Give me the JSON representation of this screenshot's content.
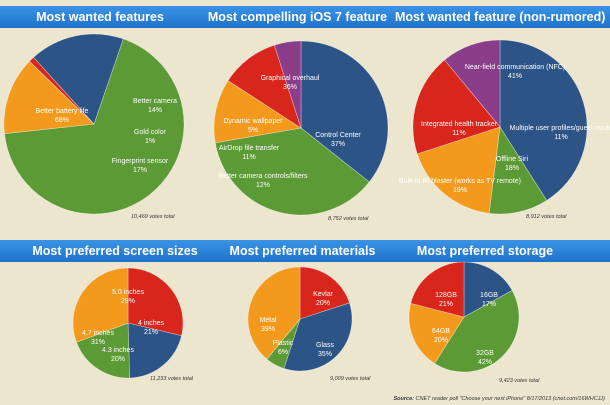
{
  "source": {
    "label": "Source:",
    "text": "CNET reader poll \"Choose your next iPhone\" 8/17/2013 (cnet.com/16WHCJJ)"
  },
  "chart_data": [
    {
      "type": "pie",
      "title": "Most wanted features",
      "votes_note": "10,469 votes total",
      "slices": [
        {
          "label": "Better battery life",
          "value": 68,
          "value_text": "68%",
          "color": "#5b9a35"
        },
        {
          "label": "Better camera",
          "value": 14,
          "value_text": "14%",
          "color": "#f39a1c"
        },
        {
          "label": "Gold color",
          "value": 1,
          "value_text": "1%",
          "color": "#d9261c"
        },
        {
          "label": "Fingerprint sensor",
          "value": 17,
          "value_text": "17%",
          "color": "#2d5486"
        }
      ]
    },
    {
      "type": "pie",
      "title": "Most compelling iOS 7 feature",
      "votes_note": "8,752 votes total",
      "slices": [
        {
          "label": "Graphical overhaul",
          "value": 36,
          "value_text": "36%",
          "color": "#2d5486"
        },
        {
          "label": "Control Center",
          "value": 37,
          "value_text": "37%",
          "color": "#5b9a35"
        },
        {
          "label": "Better camera controls/filters",
          "value": 12,
          "value_text": "12%",
          "color": "#f39a1c"
        },
        {
          "label": "AirDrop file transfer",
          "value": 11,
          "value_text": "11%",
          "color": "#d9261c"
        },
        {
          "label": "Dynamic wallpaper",
          "value": 5,
          "value_text": "5%",
          "color": "#8a3e8a"
        }
      ]
    },
    {
      "type": "pie",
      "title": "Most wanted feature (non-rumored)",
      "votes_note": "8,912 votes total",
      "slices": [
        {
          "label": "Near-field communication (NFC)",
          "value": 41,
          "value_text": "41%",
          "color": "#2d5486"
        },
        {
          "label": "Multiple user profiles/guest mode",
          "value": 11,
          "value_text": "11%",
          "color": "#5b9a35"
        },
        {
          "label": "Offline Siri",
          "value": 18,
          "value_text": "18%",
          "color": "#f39a1c"
        },
        {
          "label": "Built-in IR blaster (works as TV remote)",
          "value": 19,
          "value_text": "19%",
          "color": "#d9261c"
        },
        {
          "label": "Integrated health tracker",
          "value": 11,
          "value_text": "11%",
          "color": "#8a3e8a"
        }
      ]
    },
    {
      "type": "pie",
      "title": "Most preferred screen sizes",
      "votes_note": "11,233 votes total",
      "slices": [
        {
          "label": "5.0 inches",
          "value": 29,
          "value_text": "29%",
          "color": "#d9261c"
        },
        {
          "label": "4 inches",
          "value": 21,
          "value_text": "21%",
          "color": "#2d5486"
        },
        {
          "label": "4.3 inches",
          "value": 20,
          "value_text": "20%",
          "color": "#5b9a35"
        },
        {
          "label": "4.7 inches",
          "value": 31,
          "value_text": "31%",
          "color": "#f39a1c"
        }
      ]
    },
    {
      "type": "pie",
      "title": "Most preferred materials",
      "votes_note": "9,009 votes total",
      "slices": [
        {
          "label": "Kevlar",
          "value": 20,
          "value_text": "20%",
          "color": "#d9261c"
        },
        {
          "label": "Glass",
          "value": 35,
          "value_text": "35%",
          "color": "#2d5486"
        },
        {
          "label": "Plastic",
          "value": 6,
          "value_text": "6%",
          "color": "#5b9a35"
        },
        {
          "label": "Metal",
          "value": 39,
          "value_text": "39%",
          "color": "#f39a1c"
        }
      ]
    },
    {
      "type": "pie",
      "title": "Most preferred storage",
      "votes_note": "9,423 votes total",
      "slices": [
        {
          "label": "16GB",
          "value": 17,
          "value_text": "17%",
          "color": "#2d5486"
        },
        {
          "label": "32GB",
          "value": 42,
          "value_text": "42%",
          "color": "#5b9a35"
        },
        {
          "label": "64GB",
          "value": 20,
          "value_text": "20%",
          "color": "#f39a1c"
        },
        {
          "label": "128GB",
          "value": 21,
          "value_text": "21%",
          "color": "#d9261c"
        }
      ]
    }
  ]
}
